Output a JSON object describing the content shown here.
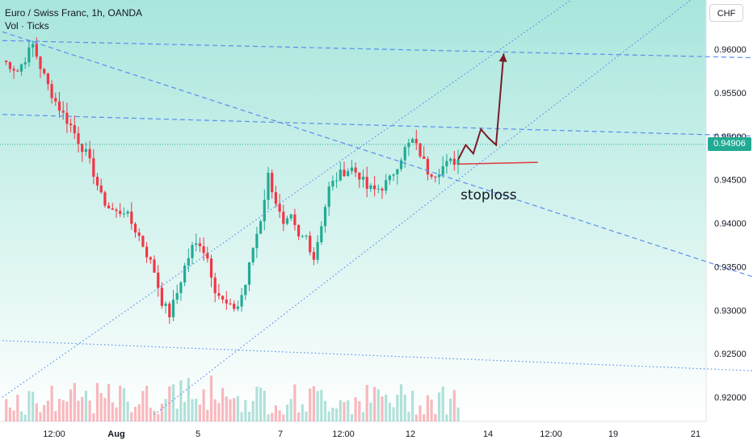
{
  "header": {
    "title": "Euro / Swiss Franc, 1h, OANDA",
    "volume_label": "Vol · Ticks"
  },
  "currency_button": "CHF",
  "current_price": "0.94906",
  "annotation": {
    "stoploss_label": "stoploss"
  },
  "colors": {
    "up": "#22ab94",
    "down": "#f23645",
    "trendline": "#5b8def",
    "arrow": "#7a1a25",
    "stoploss": "#e03a3a",
    "background_top": "#a8e6dc",
    "background_bottom": "#ffffff"
  },
  "chart_data": {
    "type": "candlestick",
    "symbol": "EURCHF",
    "timeframe": "1h",
    "y_axis": {
      "ticks": [
        "0.96000",
        "0.95500",
        "0.95000",
        "0.94500",
        "0.94000",
        "0.93500",
        "0.93000",
        "0.92500",
        "0.92000"
      ],
      "range": [
        0.9175,
        0.965
      ]
    },
    "x_axis": {
      "ticks": [
        "12:00",
        "Aug",
        "5",
        "7",
        "12:00",
        "12",
        "14",
        "12:00",
        "19",
        "21"
      ]
    },
    "close_path": [
      [
        0,
        0.9587
      ],
      [
        2,
        0.9582
      ],
      [
        4,
        0.9575
      ],
      [
        6,
        0.959
      ],
      [
        8,
        0.9605
      ],
      [
        10,
        0.958
      ],
      [
        12,
        0.9558
      ],
      [
        14,
        0.954
      ],
      [
        16,
        0.9525
      ],
      [
        18,
        0.9512
      ],
      [
        20,
        0.9495
      ],
      [
        22,
        0.948
      ],
      [
        24,
        0.9458
      ],
      [
        26,
        0.943
      ],
      [
        28,
        0.9418
      ],
      [
        30,
        0.9412
      ],
      [
        32,
        0.9415
      ],
      [
        34,
        0.94
      ],
      [
        36,
        0.9385
      ],
      [
        38,
        0.9365
      ],
      [
        40,
        0.9345
      ],
      [
        42,
        0.931
      ],
      [
        44,
        0.9295
      ],
      [
        46,
        0.932
      ],
      [
        48,
        0.935
      ],
      [
        50,
        0.9372
      ],
      [
        52,
        0.9378
      ],
      [
        54,
        0.936
      ],
      [
        56,
        0.9325
      ],
      [
        58,
        0.931
      ],
      [
        60,
        0.9302
      ],
      [
        62,
        0.9305
      ],
      [
        64,
        0.933
      ],
      [
        66,
        0.9372
      ],
      [
        68,
        0.9405
      ],
      [
        70,
        0.9455
      ],
      [
        72,
        0.9425
      ],
      [
        74,
        0.9395
      ],
      [
        76,
        0.9405
      ],
      [
        78,
        0.9382
      ],
      [
        80,
        0.9385
      ],
      [
        82,
        0.936
      ],
      [
        84,
        0.94
      ],
      [
        86,
        0.944
      ],
      [
        88,
        0.9452
      ],
      [
        90,
        0.946
      ],
      [
        92,
        0.9463
      ],
      [
        94,
        0.9455
      ],
      [
        96,
        0.944
      ],
      [
        98,
        0.9438
      ],
      [
        100,
        0.9442
      ],
      [
        102,
        0.945
      ],
      [
        104,
        0.9468
      ],
      [
        106,
        0.9485
      ],
      [
        108,
        0.9495
      ],
      [
        110,
        0.948
      ],
      [
        112,
        0.946
      ],
      [
        114,
        0.9458
      ],
      [
        116,
        0.9465
      ],
      [
        118,
        0.947
      ],
      [
        120,
        0.9473
      ]
    ],
    "projection_path": [
      [
        120,
        0.9473
      ],
      [
        122,
        0.949
      ],
      [
        124,
        0.948
      ],
      [
        126,
        0.9508
      ],
      [
        128,
        0.9498
      ],
      [
        130,
        0.949
      ],
      [
        132,
        0.9595
      ]
    ],
    "stoploss_level": 0.9468,
    "trendlines": [
      {
        "style": "dashed",
        "from": [
          0,
          0.961
        ],
        "to": [
          200,
          0.959
        ]
      },
      {
        "style": "dashed",
        "from": [
          0,
          0.962
        ],
        "to": [
          200,
          0.9335
        ]
      },
      {
        "style": "dashed",
        "from": [
          0,
          0.9525
        ],
        "to": [
          200,
          0.95
        ]
      },
      {
        "style": "dotted",
        "from": [
          0,
          0.9265
        ],
        "to": [
          200,
          0.923
        ]
      },
      {
        "style": "dotted",
        "from": [
          0,
          0.92
        ],
        "to": [
          200,
          0.981
        ]
      },
      {
        "style": "dotted",
        "from": [
          40,
          0.918
        ],
        "to": [
          200,
          0.972
        ]
      }
    ]
  }
}
